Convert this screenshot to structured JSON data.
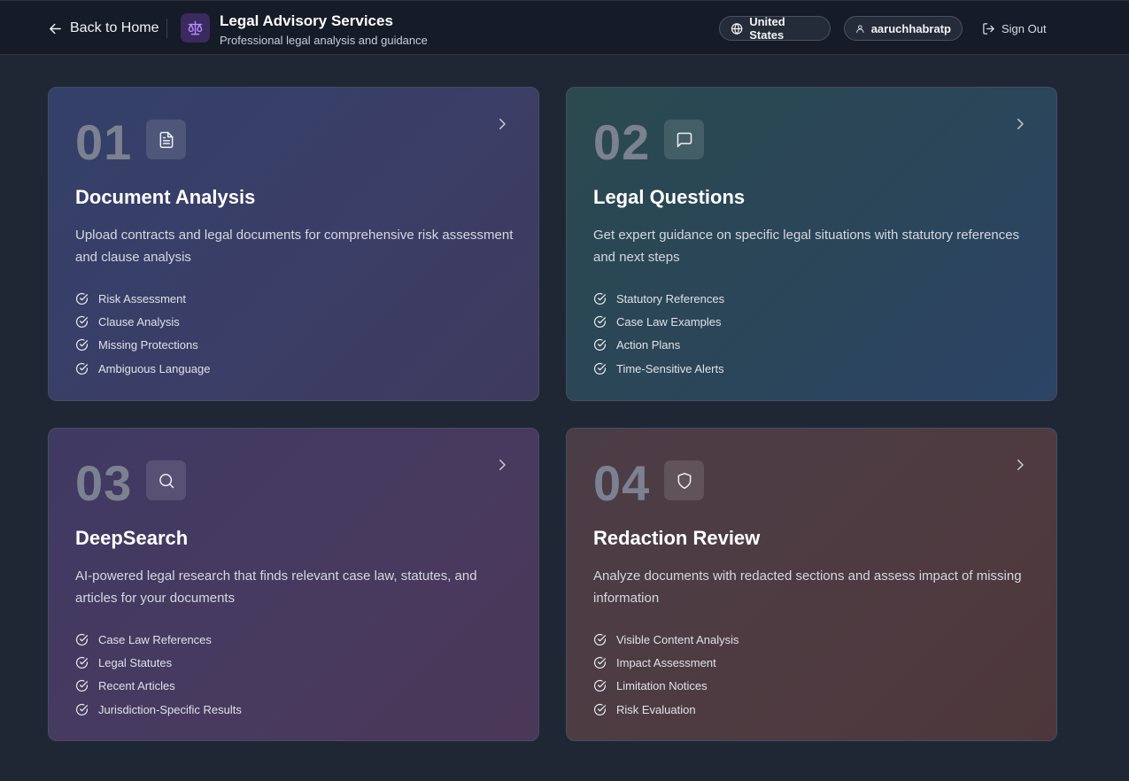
{
  "header": {
    "back_label": "Back to Home",
    "brand_title": "Legal Advisory Services",
    "brand_subtitle": "Professional legal analysis and guidance",
    "country": "United States",
    "username": "aaruchhabratp",
    "signout_label": "Sign Out"
  },
  "icons": {
    "back": "arrow-left-icon",
    "logo": "scales-icon",
    "country": "globe-icon",
    "user": "user-icon",
    "signout": "log-out-icon",
    "chevron": "chevron-right-icon",
    "feature": "check-circle-icon"
  },
  "colors": {
    "logo_accent": "#b48cff",
    "background": "#1f2735"
  },
  "cards": [
    {
      "number": "01",
      "icon": "document-icon",
      "title": "Document Analysis",
      "description": "Upload contracts and legal documents for comprehensive risk assessment and clause analysis",
      "features": [
        "Risk Assessment",
        "Clause Analysis",
        "Missing Protections",
        "Ambiguous Language"
      ]
    },
    {
      "number": "02",
      "icon": "message-icon",
      "title": "Legal Questions",
      "description": "Get expert guidance on specific legal situations with statutory references and next steps",
      "features": [
        "Statutory References",
        "Case Law Examples",
        "Action Plans",
        "Time-Sensitive Alerts"
      ]
    },
    {
      "number": "03",
      "icon": "search-icon",
      "title": "DeepSearch",
      "description": "AI-powered legal research that finds relevant case law, statutes, and articles for your documents",
      "features": [
        "Case Law References",
        "Legal Statutes",
        "Recent Articles",
        "Jurisdiction-Specific Results"
      ]
    },
    {
      "number": "04",
      "icon": "shield-icon",
      "title": "Redaction Review",
      "description": "Analyze documents with redacted sections and assess impact of missing information",
      "features": [
        "Visible Content Analysis",
        "Impact Assessment",
        "Limitation Notices",
        "Risk Evaluation"
      ]
    }
  ]
}
